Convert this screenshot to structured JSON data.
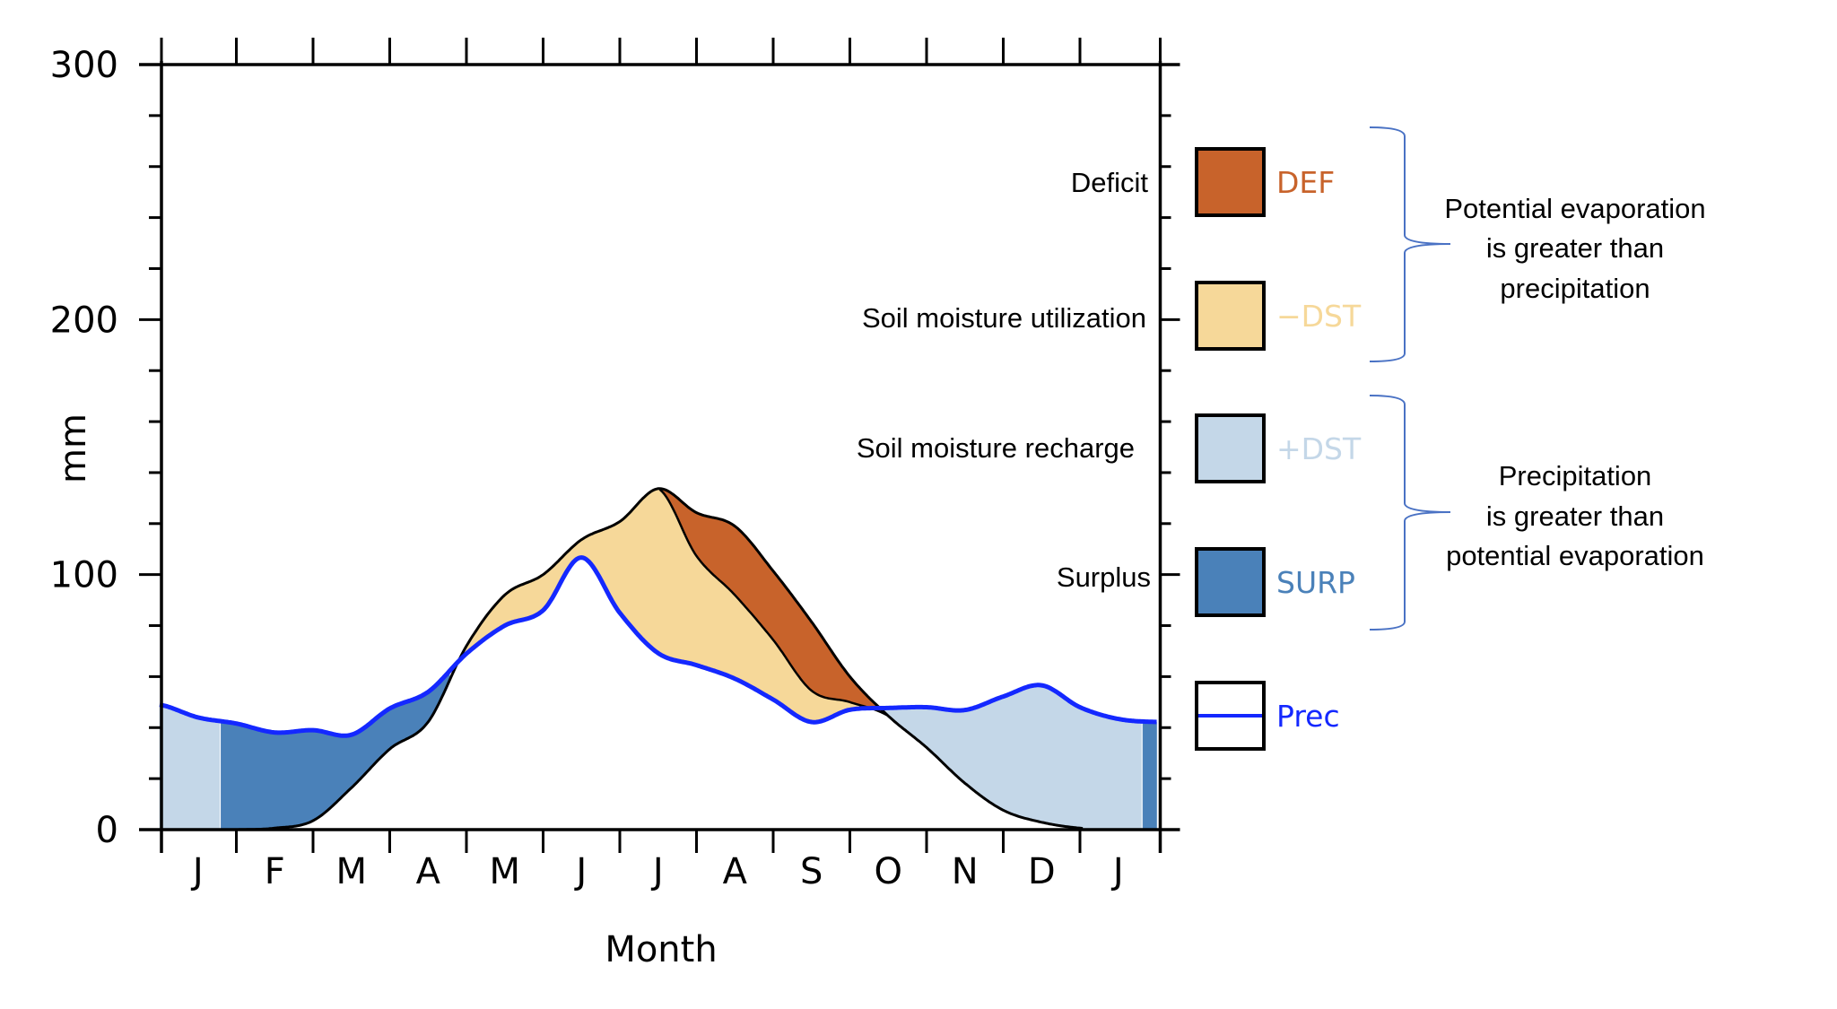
{
  "chart_data": {
    "type": "area",
    "title": "",
    "xlabel": "Month",
    "ylabel": "mm",
    "ylim": [
      0,
      300
    ],
    "y_ticks": [
      "0",
      "100",
      "200",
      "300"
    ],
    "y_minor_step": 20,
    "x_tick_labels": [
      "J",
      "F",
      "M",
      "A",
      "M",
      "J",
      "J",
      "A",
      "S",
      "O",
      "N",
      "D",
      "J"
    ],
    "x_month_step": 0.5,
    "series": [
      {
        "name": "Prec",
        "key": "prec",
        "color": "#1428ff",
        "values": [
          49,
          44,
          41.6,
          38.1,
          39,
          37.2,
          47.5,
          54,
          69,
          80,
          86,
          106.7,
          85,
          69.2,
          64.5,
          59.2,
          51,
          42.2,
          47,
          47.7,
          48,
          46.9,
          52.2,
          56.6,
          48,
          43.4,
          42.2
        ]
      },
      {
        "key": "pet",
        "color": "#000000",
        "values": [
          0,
          0,
          0,
          0.6,
          3.5,
          16.4,
          31.6,
          42.2,
          72,
          92,
          100,
          113.7,
          120.8,
          133.7,
          124.3,
          119,
          101.4,
          81.5,
          60,
          44.6,
          32.2,
          18.2,
          7.6,
          2.9,
          0.6,
          0,
          0
        ]
      },
      {
        "key": "aet",
        "color": "#000000",
        "values": [
          0,
          0,
          0,
          0.6,
          3.5,
          16.4,
          31.6,
          42.2,
          72,
          92,
          100,
          113.7,
          120.8,
          133.7,
          107.3,
          92,
          74.4,
          54.5,
          50,
          44.6,
          32.2,
          18.2,
          7.6,
          2.9,
          0.6,
          0,
          0
        ]
      }
    ],
    "recharge_periods": [
      [
        0,
        0.8
      ],
      [
        9.42,
        12.8
      ]
    ],
    "surplus_periods": [
      [
        0.8,
        3.8
      ],
      [
        12.8,
        13
      ]
    ],
    "fills": {
      "DEF": "#c8632b",
      "-DST": "#f6d899",
      "+DST": "#c4d7e8",
      "SURP": "#4a81b9"
    },
    "legend": [
      {
        "key": "DEF",
        "label": "DEF",
        "desc": "Deficit",
        "color": "#c8632b"
      },
      {
        "key": "-DST",
        "label": "−DST",
        "desc": "Soil moisture utilization",
        "color": "#f6d899"
      },
      {
        "key": "+DST",
        "label": "+DST",
        "desc": "Soil moisture recharge",
        "color": "#c4d7e8"
      },
      {
        "key": "SURP",
        "label": "SURP",
        "desc": "Surplus",
        "color": "#4a81b9"
      },
      {
        "key": "Prec",
        "label": "Prec",
        "desc": "",
        "color": "#1428ff"
      }
    ],
    "annotations": [
      {
        "lines": [
          "Potential evaporation",
          "is greater than",
          "precipitation"
        ]
      },
      {
        "lines": [
          "Precipitation",
          "is greater than",
          "potential evaporation"
        ]
      }
    ],
    "brace_color": "#4a72c4"
  }
}
